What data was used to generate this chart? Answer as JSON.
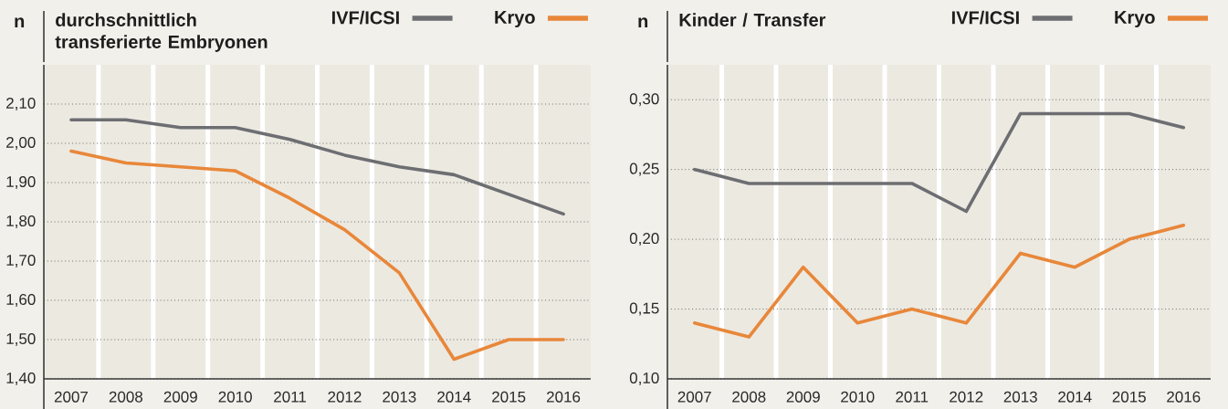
{
  "chart_data": [
    {
      "type": "line",
      "title": "durchschnittlich transferierte Embryonen",
      "ylabel": "n",
      "categories": [
        "2007",
        "2008",
        "2009",
        "2010",
        "2011",
        "2012",
        "2013",
        "2014",
        "2015",
        "2016"
      ],
      "series": [
        {
          "name": "IVF/ICSI",
          "color": "#6d6e72",
          "values": [
            2.06,
            2.06,
            2.04,
            2.04,
            2.01,
            1.97,
            1.94,
            1.92,
            1.87,
            1.82
          ]
        },
        {
          "name": "Kryo",
          "color": "#e8873a",
          "values": [
            1.98,
            1.95,
            1.94,
            1.93,
            1.86,
            1.78,
            1.67,
            1.45,
            1.5,
            1.5
          ]
        }
      ],
      "ylim": [
        1.4,
        2.2
      ],
      "yticks": [
        {
          "value": 1.4,
          "label": "1,40"
        },
        {
          "value": 1.5,
          "label": "1,50"
        },
        {
          "value": 1.6,
          "label": "1,60"
        },
        {
          "value": 1.7,
          "label": "1,70"
        },
        {
          "value": 1.8,
          "label": "1,80"
        },
        {
          "value": 1.9,
          "label": "1,90"
        },
        {
          "value": 2.0,
          "label": "2,00"
        },
        {
          "value": 2.1,
          "label": "2,10"
        }
      ],
      "grid": true,
      "legend": "top right"
    },
    {
      "type": "line",
      "title": "Kinder / Transfer",
      "ylabel": "n",
      "categories": [
        "2007",
        "2008",
        "2009",
        "2010",
        "2011",
        "2012",
        "2013",
        "2014",
        "2015",
        "2016"
      ],
      "series": [
        {
          "name": "IVF/ICSI",
          "color": "#6d6e72",
          "values": [
            0.25,
            0.24,
            0.24,
            0.24,
            0.24,
            0.22,
            0.29,
            0.29,
            0.29,
            0.28
          ]
        },
        {
          "name": "Kryo",
          "color": "#e8873a",
          "values": [
            0.14,
            0.13,
            0.18,
            0.14,
            0.15,
            0.14,
            0.19,
            0.18,
            0.2,
            0.21
          ]
        }
      ],
      "ylim": [
        0.1,
        0.325
      ],
      "yticks": [
        {
          "value": 0.1,
          "label": "0,10"
        },
        {
          "value": 0.15,
          "label": "0,15"
        },
        {
          "value": 0.2,
          "label": "0,20"
        },
        {
          "value": 0.25,
          "label": "0,25"
        },
        {
          "value": 0.3,
          "label": "0,30"
        }
      ],
      "grid": true,
      "legend": "top right"
    }
  ]
}
